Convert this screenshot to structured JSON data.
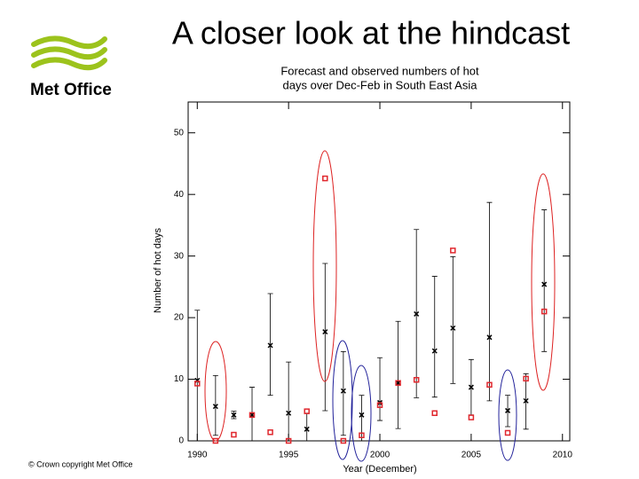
{
  "slide": {
    "title": "A closer look at the hindcast",
    "logo_text": "Met Office",
    "footer": "© Crown copyright   Met Office"
  },
  "chart_data": {
    "type": "errorbar",
    "title": [
      "Forecast and observed numbers of hot",
      "days over Dec-Feb in South East Asia"
    ],
    "x_label": "Year (December)",
    "y_label": "Number of hot days",
    "x": [
      1990,
      1991,
      1992,
      1993,
      1994,
      1995,
      1996,
      1997,
      1998,
      1999,
      2000,
      2001,
      2002,
      2003,
      2004,
      2005,
      2006,
      2007,
      2008,
      2009
    ],
    "series": [
      {
        "marker": "cross",
        "color": "#000000",
        "values": [
          9.8,
          5.6,
          4.2,
          4.2,
          15.5,
          4.5,
          1.9,
          17.7,
          8.1,
          4.2,
          6.2,
          9.4,
          20.6,
          14.6,
          18.3,
          8.7,
          16.8,
          4.9,
          6.5,
          25.4
        ],
        "lower": [
          0,
          0.9,
          3.6,
          0,
          7.4,
          0.3,
          0,
          4.9,
          0.9,
          0,
          3.3,
          2,
          7,
          7.1,
          9.3,
          4.2,
          6.5,
          2.3,
          1.9,
          14.5
        ],
        "upper": [
          21.2,
          10.6,
          4.8,
          8.7,
          23.9,
          12.8,
          4.5,
          28.8,
          14.5,
          7.4,
          13.5,
          19.4,
          34.3,
          26.7,
          29.9,
          13.2,
          38.7,
          7.4,
          10.9,
          37.5
        ]
      },
      {
        "marker": "square",
        "color": "#e0282e",
        "values": [
          9.3,
          0,
          1,
          4.2,
          1.4,
          0,
          4.8,
          42.6,
          0,
          0.9,
          5.8,
          9.4,
          9.9,
          4.5,
          30.9,
          3.8,
          9.1,
          1.3,
          10.1,
          21
        ]
      }
    ],
    "xlim": [
      1989.5,
      2010.4
    ],
    "ylim": [
      0,
      55
    ],
    "xticks": [
      1990,
      1995,
      2000,
      2005,
      2010
    ],
    "yticks": [
      0,
      10,
      20,
      30,
      40,
      50
    ]
  }
}
